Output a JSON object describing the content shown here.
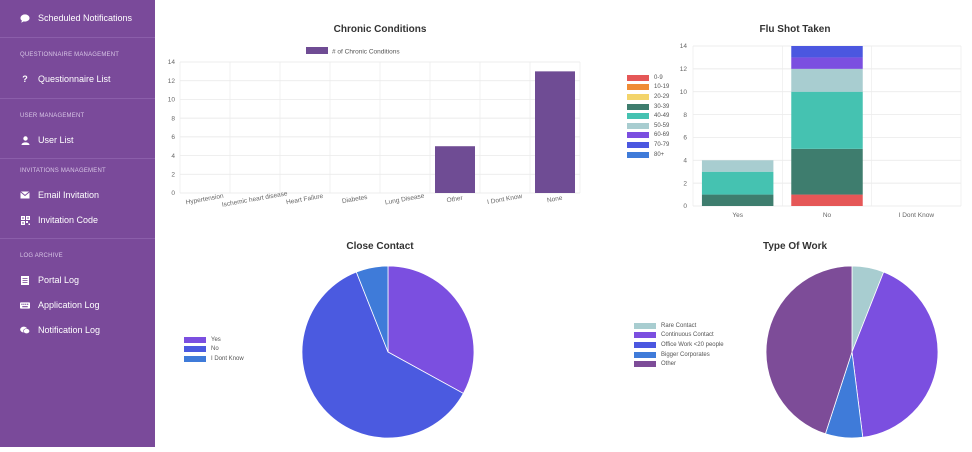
{
  "sidebar": {
    "top_item": {
      "label": "Scheduled Notifications",
      "icon": "chat-bubble-icon"
    },
    "sections": [
      {
        "title": "QUESTIONNAIRE MANAGEMENT",
        "items": [
          {
            "label": "Questionnaire List",
            "icon": "question-icon"
          }
        ]
      },
      {
        "title": "USER MANAGEMENT",
        "items": [
          {
            "label": "User List",
            "icon": "user-icon"
          }
        ]
      },
      {
        "title": "INVITATIONS MANAGEMENT",
        "items": [
          {
            "label": "Email Invitation",
            "icon": "envelope-icon"
          },
          {
            "label": "Invitation Code",
            "icon": "qr-code-icon"
          }
        ]
      },
      {
        "title": "LOG ARCHIVE",
        "items": [
          {
            "label": "Portal Log",
            "icon": "document-icon"
          },
          {
            "label": "Application Log",
            "icon": "keyboard-icon"
          },
          {
            "label": "Notification Log",
            "icon": "chat-bubbles-icon"
          }
        ]
      }
    ]
  },
  "colors": {
    "sidebar_bg": "#7a4a9a",
    "bar_purple": "#6f4c94"
  },
  "chart_data": [
    {
      "type": "bar",
      "title": "Chronic Conditions",
      "categories": [
        "Hypertension",
        "Ischemic heart disease",
        "Heart Failure",
        "Diabetes",
        "Lung Disease",
        "Other",
        "I Dont Know",
        "None"
      ],
      "series": [
        {
          "name": "# of Chronic Conditions",
          "values": [
            0,
            0,
            0,
            0,
            0,
            5,
            0,
            13
          ],
          "color": "#6f4c94"
        }
      ],
      "ylim": [
        0,
        14
      ],
      "yticks": [
        "0",
        "2",
        "4",
        "6",
        "8",
        "10",
        "12",
        "14"
      ],
      "legend": "top",
      "grid": true
    },
    {
      "type": "bar",
      "stacked": true,
      "title": "Flu Shot Taken",
      "categories": [
        "Yes",
        "No",
        "I Dont Know"
      ],
      "series": [
        {
          "name": "0-9",
          "color": "#e55757",
          "values": [
            0,
            1,
            0
          ]
        },
        {
          "name": "10-19",
          "color": "#ef8c35",
          "values": [
            0,
            0,
            0
          ]
        },
        {
          "name": "20-29",
          "color": "#f3d46b",
          "values": [
            0,
            0,
            0
          ]
        },
        {
          "name": "30-39",
          "color": "#3e7d6e",
          "values": [
            1,
            4,
            0
          ]
        },
        {
          "name": "40-49",
          "color": "#45c2b1",
          "values": [
            2,
            5,
            0
          ]
        },
        {
          "name": "50-59",
          "color": "#a8cdd0",
          "values": [
            1,
            2,
            0
          ]
        },
        {
          "name": "60-69",
          "color": "#7b4fe0",
          "values": [
            0,
            1,
            0
          ]
        },
        {
          "name": "70-79",
          "color": "#4b57e0",
          "values": [
            0,
            1,
            0
          ]
        },
        {
          "name": "80+",
          "color": "#3f7bd9",
          "values": [
            0,
            0,
            0
          ]
        }
      ],
      "ylim": [
        0,
        14
      ],
      "yticks": [
        "0",
        "2",
        "4",
        "6",
        "8",
        "10",
        "12",
        "14"
      ],
      "legend": "left",
      "grid": true
    },
    {
      "type": "pie",
      "title": "Close Contact",
      "labels": [
        "Yes",
        "No",
        "I Dont Know"
      ],
      "values": [
        33,
        61,
        6
      ],
      "colors": [
        "#7b4fe0",
        "#4b5ae0",
        "#3f7bd9"
      ],
      "legend": "left"
    },
    {
      "type": "pie",
      "title": "Type Of Work",
      "labels": [
        "Rare Contact",
        "Continuous Contact",
        "Office Work <20 people",
        "Bigger Corporates",
        "Other"
      ],
      "values": [
        6,
        42,
        0,
        7,
        45
      ],
      "colors": [
        "#a8cdd0",
        "#7b4fe0",
        "#4b57e0",
        "#3f7bd9",
        "#7d4c98"
      ],
      "legend": "left"
    }
  ]
}
